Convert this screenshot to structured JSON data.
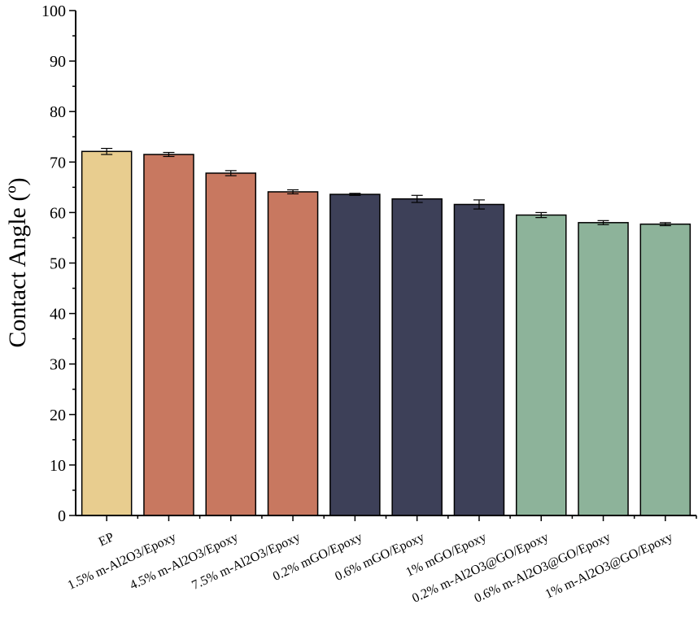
{
  "chart_data": {
    "type": "bar",
    "title": "",
    "xlabel": "",
    "ylabel": "Contact Angle (º)",
    "ylim": [
      0,
      100
    ],
    "yticks": [
      0,
      10,
      20,
      30,
      40,
      50,
      60,
      70,
      80,
      90,
      100
    ],
    "grid": false,
    "categories": [
      "EP",
      "1.5% m-Al2O3/Epoxy",
      "4.5% m-Al2O3/Epoxy",
      "7.5% m-Al2O3/Epoxy",
      "0.2% mGO/Epoxy",
      "0.6% mGO/Epoxy",
      "1% mGO/Epoxy",
      "0.2% m-Al2O3@GO/Epoxy",
      "0.6% m-Al2O3@GO/Epoxy",
      "1% m-Al2O3@GO/Epoxy"
    ],
    "values": [
      72.1,
      71.5,
      67.8,
      64.1,
      63.6,
      62.7,
      61.6,
      59.5,
      58.0,
      57.7
    ],
    "errors": [
      0.6,
      0.4,
      0.5,
      0.4,
      0.2,
      0.7,
      0.9,
      0.5,
      0.4,
      0.3
    ],
    "colors": [
      "#E8CD8F",
      "#C87860",
      "#C87860",
      "#C87860",
      "#3D4058",
      "#3D4058",
      "#3D4058",
      "#8DB39A",
      "#8DB39A",
      "#8DB39A"
    ]
  }
}
